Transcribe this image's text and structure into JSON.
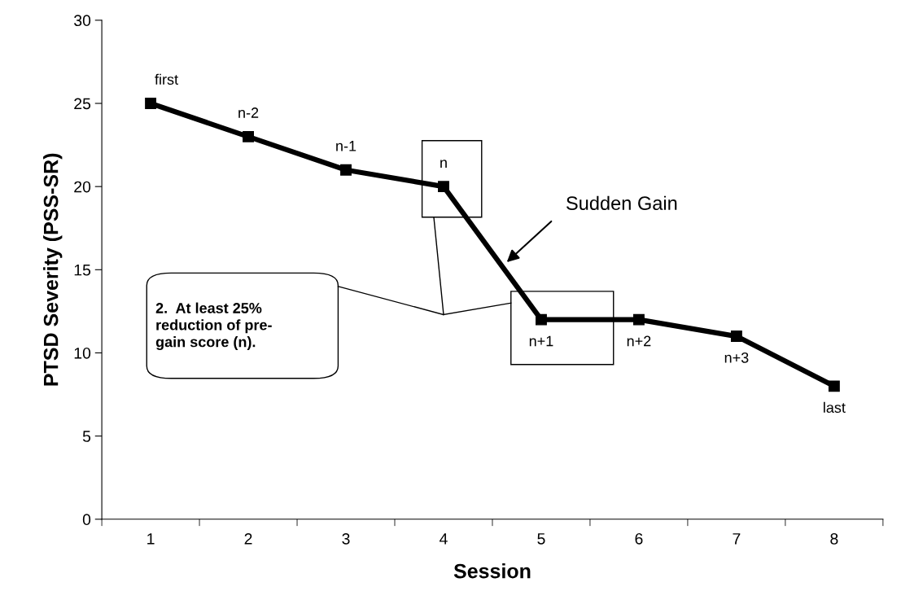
{
  "chart_data": {
    "type": "line",
    "xlabel": "Session",
    "ylabel": "PTSD Severity (PSS-SR)",
    "categories": [
      "1",
      "2",
      "3",
      "4",
      "5",
      "6",
      "7",
      "8"
    ],
    "series": [
      {
        "color": "#000000",
        "values": [
          25,
          23,
          21,
          20,
          12,
          12,
          11,
          8
        ]
      }
    ],
    "ylim": [
      0,
      30
    ],
    "yticks": [
      0,
      5,
      10,
      15,
      20,
      25,
      30
    ],
    "grid": false,
    "legend": false,
    "marker": "square",
    "line_style": "solid",
    "annotations": [
      {
        "text": "first",
        "x": "1",
        "y": 25
      },
      {
        "text": "n-2",
        "x": "2",
        "y": 23
      },
      {
        "text": "n-1",
        "x": "3",
        "y": 21
      },
      {
        "text": "n",
        "x": "4",
        "y": 20
      },
      {
        "text": "n+1",
        "x": "5",
        "y": 12
      },
      {
        "text": "n+2",
        "x": "6",
        "y": 12
      },
      {
        "text": "n+3",
        "x": "7",
        "y": 11
      },
      {
        "text": "last",
        "x": "8",
        "y": 8
      },
      "Sudden Gain",
      "2.  At least 25%\nreduction of pre-\ngain score (n)."
    ]
  }
}
